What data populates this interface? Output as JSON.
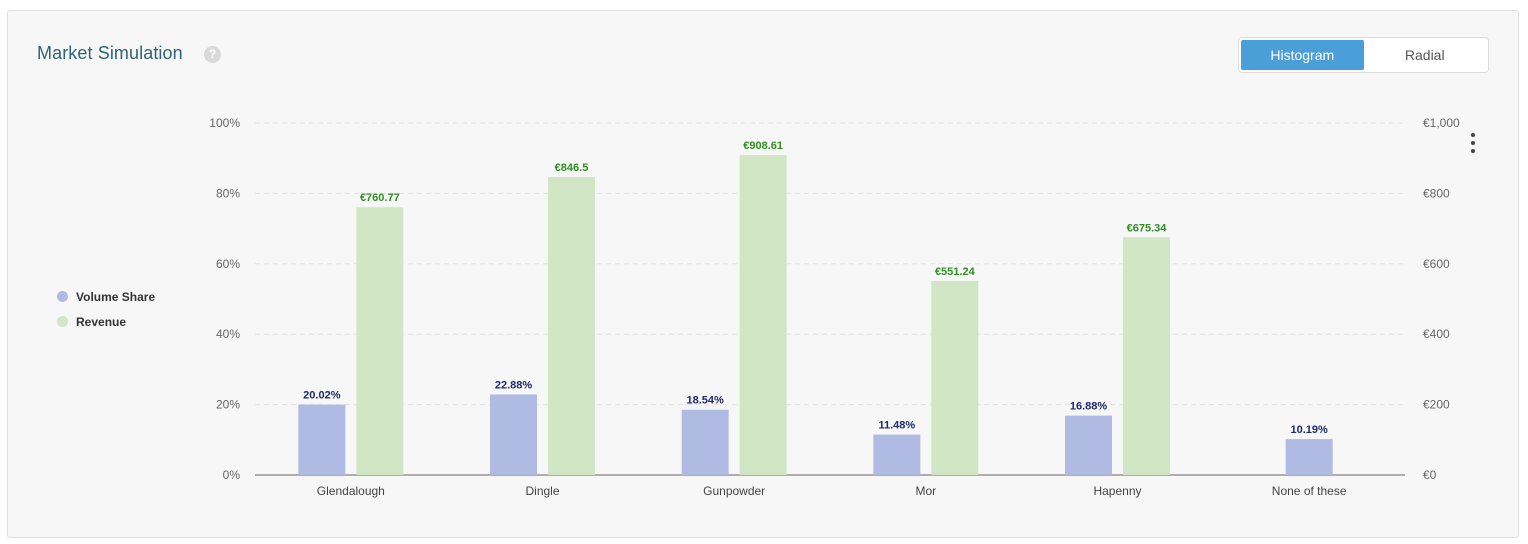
{
  "header": {
    "title": "Market Simulation",
    "help_glyph": "?",
    "tabs": [
      {
        "label": "Histogram",
        "active": true
      },
      {
        "label": "Radial",
        "active": false
      }
    ],
    "menu_icon": "vertical-ellipsis-icon"
  },
  "chart_data": {
    "type": "bar",
    "categories": [
      "Glendalough",
      "Dingle",
      "Gunpowder",
      "Mor",
      "Hapenny",
      "None of these"
    ],
    "series": [
      {
        "name": "Volume Share",
        "axis": "left",
        "color": "#b0bbe4",
        "label_color": "#1c2a6b",
        "values": [
          20.02,
          22.88,
          18.54,
          11.48,
          16.88,
          10.19
        ],
        "labels": [
          "20.02%",
          "22.88%",
          "18.54%",
          "11.48%",
          "16.88%",
          "10.19%"
        ]
      },
      {
        "name": "Revenue",
        "axis": "right",
        "color": "#d0e6c4",
        "label_color": "#2f8f22",
        "values": [
          760.77,
          846.5,
          908.61,
          551.24,
          675.34,
          null
        ],
        "labels": [
          "€760.77",
          "€846.5",
          "€908.61",
          "€551.24",
          "€675.34",
          ""
        ]
      }
    ],
    "left_axis": {
      "ylim": [
        0,
        100
      ],
      "ticks": [
        "0%",
        "20%",
        "40%",
        "60%",
        "80%",
        "100%"
      ]
    },
    "right_axis": {
      "ylim": [
        0,
        1000
      ],
      "ticks": [
        "€0",
        "€200",
        "€400",
        "€600",
        "€800",
        "€1,000"
      ]
    },
    "grid": true,
    "legend_position": "left"
  }
}
